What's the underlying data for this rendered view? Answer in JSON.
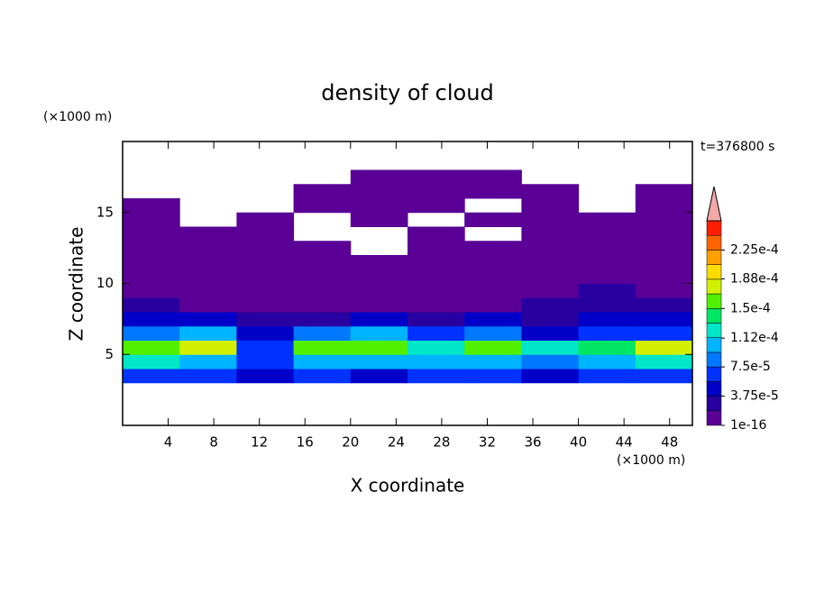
{
  "chart_data": {
    "type": "contour",
    "title": "density of cloud",
    "x_label": "X coordinate",
    "y_label": "Z coordinate",
    "x_unit": "(×1000 m)",
    "y_unit": "(×1000 m)",
    "time_label": "t=376800 s",
    "xlim": [
      0,
      50
    ],
    "ylim": [
      0,
      20
    ],
    "xticks": [
      4,
      8,
      12,
      16,
      20,
      24,
      28,
      32,
      36,
      40,
      44,
      48
    ],
    "yticks": [
      5,
      10,
      15
    ],
    "x": [
      2.5,
      7.5,
      12.5,
      17.5,
      22.5,
      27.5,
      32.5,
      37.5,
      42.5,
      47.5
    ],
    "y": [
      3.5,
      4.5,
      5.5,
      6.5,
      7.5,
      8.5,
      9.5,
      10.5,
      11.5,
      12.5,
      13.5,
      14.5,
      15.5,
      16.5,
      17.5
    ],
    "z": [
      [
        6e-05,
        6e-05,
        5e-05,
        6e-05,
        5e-05,
        6e-05,
        6e-05,
        5e-05,
        6e-05,
        6e-05
      ],
      [
        0.00012,
        0.00011,
        7e-05,
        0.00011,
        0.0001,
        0.0001,
        0.00011,
        9e-05,
        0.00011,
        0.00012
      ],
      [
        0.00016,
        0.00017,
        6e-05,
        0.00015,
        0.00016,
        0.00013,
        0.00016,
        0.00012,
        0.00014,
        0.00017
      ],
      [
        8e-05,
        0.0001,
        4e-05,
        8e-05,
        0.00011,
        6e-05,
        9e-05,
        5e-05,
        6e-05,
        7e-05
      ],
      [
        4e-05,
        4e-05,
        3e-05,
        3e-05,
        4e-05,
        3e-05,
        4e-05,
        3e-05,
        4e-05,
        4e-05
      ],
      [
        2e-05,
        1.5e-05,
        1e-05,
        1e-05,
        1e-05,
        1e-05,
        1.5e-05,
        2e-05,
        3e-05,
        2.5e-05
      ],
      [
        5e-06,
        5e-06,
        5e-06,
        5e-06,
        5e-06,
        5e-06,
        5e-06,
        1e-05,
        2e-05,
        1e-05
      ],
      [
        5e-06,
        5e-06,
        5e-06,
        5e-06,
        5e-06,
        5e-06,
        5e-06,
        5e-06,
        5e-06,
        5e-06
      ],
      [
        5e-06,
        5e-06,
        5e-06,
        5e-06,
        5e-06,
        5e-06,
        5e-06,
        5e-06,
        5e-06,
        5e-06
      ],
      [
        5e-06,
        5e-06,
        5e-06,
        5e-06,
        null,
        5e-06,
        5e-06,
        5e-06,
        5e-06,
        5e-06
      ],
      [
        5e-06,
        5e-06,
        5e-06,
        null,
        null,
        5e-06,
        null,
        5e-06,
        5e-06,
        5e-06
      ],
      [
        5e-06,
        null,
        5e-06,
        null,
        5e-06,
        null,
        5e-06,
        5e-06,
        5e-06,
        5e-06
      ],
      [
        5e-06,
        null,
        null,
        5e-06,
        5e-06,
        5e-06,
        null,
        5e-06,
        null,
        5e-06
      ],
      [
        null,
        null,
        null,
        5e-06,
        5e-06,
        5e-06,
        5e-06,
        5e-06,
        null,
        5e-06
      ],
      [
        null,
        null,
        null,
        null,
        5e-06,
        5e-06,
        5e-06,
        null,
        null,
        null
      ]
    ],
    "levels": [
      1e-16,
      1.875e-05,
      3.75e-05,
      5.625e-05,
      7.5e-05,
      9.375e-05,
      0.0001125,
      0.00013125,
      0.00015,
      0.00016875,
      0.0001875,
      0.00020625,
      0.000225,
      0.00024375
    ],
    "colors": [
      "#5a0096",
      "#2800a0",
      "#0000c8",
      "#0032ff",
      "#0078ff",
      "#00b4ff",
      "#00e6c8",
      "#00e664",
      "#50f000",
      "#d2f000",
      "#ffdc00",
      "#ffa000",
      "#ff6400",
      "#ff1e00"
    ],
    "extend_color": "#f4a8a8",
    "clim": [
      1e-16,
      0.0002625
    ],
    "cticks": [
      {
        "value": 1e-16,
        "label": "1e-16"
      },
      {
        "value": 3.75e-05,
        "label": "3.75e-5"
      },
      {
        "value": 7.5e-05,
        "label": "7.5e-5"
      },
      {
        "value": 0.000112,
        "label": "1.12e-4"
      },
      {
        "value": 0.00015,
        "label": "1.5e-4"
      },
      {
        "value": 0.000188,
        "label": "1.88e-4"
      },
      {
        "value": 0.000225,
        "label": "2.25e-4"
      }
    ]
  }
}
